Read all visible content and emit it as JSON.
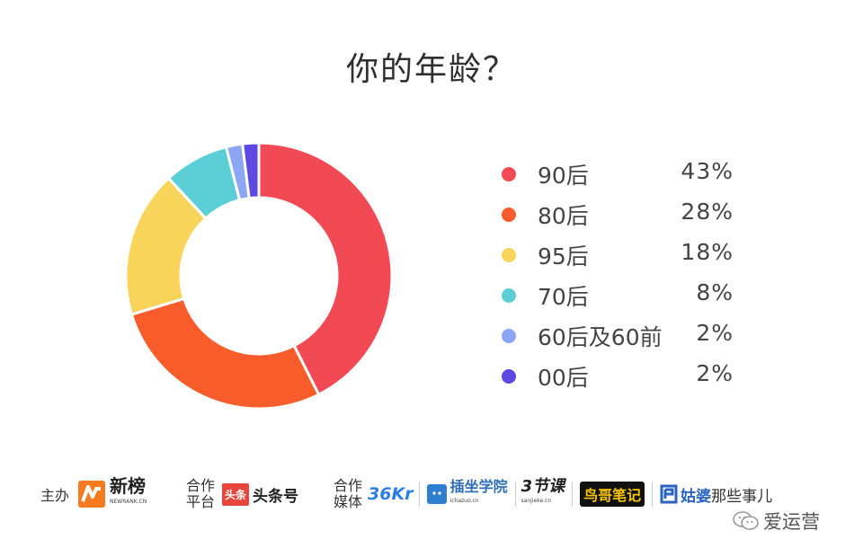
{
  "chart_data": {
    "type": "pie",
    "donut": true,
    "title": "你的年龄？",
    "categories": [
      "90后",
      "80后",
      "95后",
      "70后",
      "60后及60前",
      "00后"
    ],
    "values": [
      43,
      28,
      18,
      8,
      2,
      2
    ],
    "value_labels": [
      "43%",
      "28%",
      "18%",
      "8%",
      "2%",
      "2%"
    ],
    "colors": [
      "#f24a54",
      "#f85c2a",
      "#f8d45a",
      "#5ccfd6",
      "#8aa6f4",
      "#5b49e2"
    ],
    "legend": "right"
  },
  "footer": {
    "host_label": "主办",
    "host_logo": "新榜",
    "host_logo_sub": "NEWRANK.CN",
    "partner_platform_label": [
      "合作",
      "平台"
    ],
    "platform_logo_badge": "头条",
    "platform_logo": "头条号",
    "partner_media_label": [
      "合作",
      "媒体"
    ],
    "media_36kr": "36Kr",
    "media_chazuo": "插坐学院",
    "media_chazuo_sub": "ichazuo.cn",
    "media_3jieke": "3节课",
    "media_3jieke_sub": "sanjieke.cn",
    "media_niaoge": "鸟哥笔记",
    "media_gupo": "姑婆",
    "media_gupo_tail": "那些事儿"
  },
  "watermark": {
    "text": "爱运营",
    "icon": "wechat-icon"
  }
}
